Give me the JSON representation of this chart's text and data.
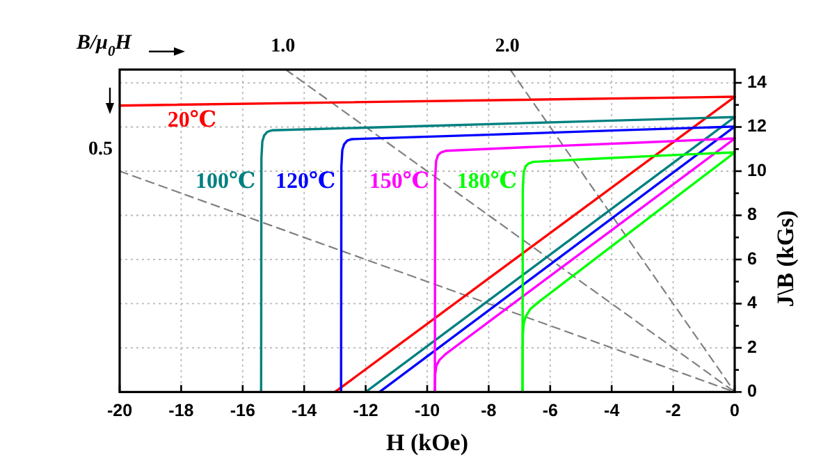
{
  "chart_data": {
    "type": "line",
    "xlabel": "H (kOe)",
    "ylabel": "J\\B (kGs)",
    "annotations": [
      "B/μ$_{0}$H"
    ],
    "xlim": [
      -20,
      0
    ],
    "xticks": [
      -20,
      -18,
      -16,
      -14,
      -12,
      -10,
      -8,
      -6,
      -4,
      -2,
      0
    ],
    "ylim": [
      0,
      14.6
    ],
    "yticks": [
      0,
      {
        "value": 1,
        "label": null
      },
      2,
      {
        "value": 3,
        "label": null
      },
      4,
      {
        "value": 5,
        "label": null
      },
      6,
      {
        "value": 7,
        "label": null
      },
      8,
      {
        "value": 9,
        "label": null
      },
      10,
      {
        "value": 11,
        "label": null
      },
      12,
      {
        "value": 13,
        "label": null
      },
      14
    ],
    "grid": true,
    "series": [
      {
        "name": "0.5",
        "color": "#808080",
        "line_style": "dashed",
        "x": [
          -20,
          0
        ],
        "values": [
          10,
          0
        ]
      },
      {
        "name": "1.0",
        "color": "#808080",
        "line_style": "dashed",
        "x": [
          -14.6,
          0
        ],
        "values": [
          14.6,
          0
        ]
      },
      {
        "name": "2.0",
        "color": "#808080",
        "line_style": "dashed",
        "x": [
          -7.3,
          0
        ],
        "values": [
          14.6,
          0
        ]
      },
      {
        "name": "20℃",
        "color": "#ff0000",
        "x": [
          -20,
          0
        ],
        "values": [
          12.97,
          13.37
        ]
      },
      {
        "color": "#ff0000",
        "x": [
          -13.0,
          0
        ],
        "values": [
          0,
          13.37
        ]
      },
      {
        "name": "100℃",
        "color": "#008080",
        "x": [
          -15.4,
          -15.39,
          -15.36,
          -15.3,
          -15.2,
          -15.05,
          -10,
          -5,
          0
        ],
        "values": [
          0,
          10.6,
          11.35,
          11.62,
          11.78,
          11.85,
          12.05,
          12.25,
          12.45
        ]
      },
      {
        "color": "#008080",
        "x": [
          -12.0,
          0
        ],
        "values": [
          0,
          12.45
        ]
      },
      {
        "name": "120℃",
        "color": "#0000ff",
        "x": [
          -12.8,
          -12.79,
          -12.76,
          -12.7,
          -12.6,
          -12.45,
          -8,
          -4,
          0
        ],
        "values": [
          0,
          10.2,
          10.95,
          11.22,
          11.38,
          11.45,
          11.65,
          11.84,
          12.02
        ]
      },
      {
        "color": "#0000ff",
        "x": [
          -11.55,
          0
        ],
        "values": [
          0,
          12.02
        ]
      },
      {
        "name": "150℃",
        "color": "#ff00ff",
        "x": [
          -9.75,
          -9.74,
          -9.71,
          -9.65,
          -9.55,
          -9.4,
          -6,
          -3,
          0
        ],
        "values": [
          0,
          9.7,
          10.45,
          10.72,
          10.85,
          10.92,
          11.13,
          11.3,
          11.48
        ]
      },
      {
        "color": "#ff00ff",
        "x": [
          -9.75,
          -9.74,
          -9.7,
          -9.6,
          -9.4,
          0
        ],
        "values": [
          0,
          0.8,
          1.2,
          1.45,
          1.72,
          11.48
        ]
      },
      {
        "name": "180℃",
        "color": "#00ff00",
        "x": [
          -6.9,
          -6.89,
          -6.86,
          -6.8,
          -6.7,
          -6.55,
          -4,
          -2,
          0
        ],
        "values": [
          0,
          9.2,
          9.95,
          10.22,
          10.35,
          10.42,
          10.6,
          10.73,
          10.85
        ]
      },
      {
        "color": "#00ff00",
        "x": [
          -6.9,
          -6.89,
          -6.86,
          -6.8,
          -6.65,
          -6.4,
          0
        ],
        "values": [
          0,
          2.6,
          3.1,
          3.4,
          3.75,
          4.05,
          10.85
        ]
      }
    ]
  }
}
